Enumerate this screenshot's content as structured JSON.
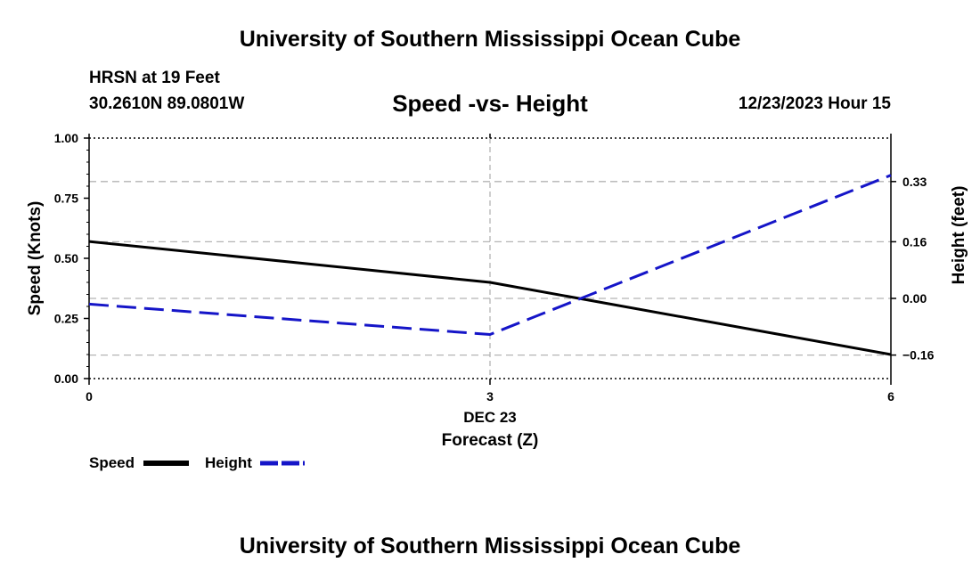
{
  "header": {
    "title": "University of Southern Mississippi Ocean Cube",
    "station": "HRSN at 19 Feet",
    "coordinates": "30.2610N  89.0801W",
    "plot_title": "Speed -vs- Height",
    "valid_time": "12/23/2023 Hour 15"
  },
  "footer": {
    "title": "University of Southern Mississippi Ocean Cube"
  },
  "legend": {
    "speed_label": "Speed",
    "height_label": "Height"
  },
  "colors": {
    "speed": "#000000",
    "height": "#1515c8",
    "grid": "#b4b4b4"
  },
  "chart_data": {
    "type": "line",
    "title": "Speed -vs- Height",
    "x": [
      0,
      3,
      6
    ],
    "x_ticks": [
      0,
      3,
      6
    ],
    "x_tick_labels": [
      "0",
      "3",
      "6"
    ],
    "x_date_label": "DEC 23",
    "xlabel": "Forecast (Z)",
    "xlim": [
      0,
      6
    ],
    "ylabel_left": "Speed (Knots)",
    "ylim_left": [
      0,
      1
    ],
    "y_ticks_left": [
      0,
      0.25,
      0.5,
      0.75,
      1
    ],
    "y_tick_labels_left": [
      "0.00",
      "0.25",
      "0.50",
      "0.75",
      "1.00"
    ],
    "ylabel_right": "Height (feet)",
    "ylim_right": [
      -0.2264,
      0.4528
    ],
    "y_ticks_right": [
      -0.16,
      0,
      0.16,
      0.33
    ],
    "y_tick_labels_right": [
      "−0.16",
      "0.00",
      "0.16",
      "0.33"
    ],
    "grid": true,
    "legend_position": "bottom-left",
    "series": [
      {
        "name": "Speed",
        "axis": "left",
        "style": "solid",
        "values": [
          0.57,
          0.4,
          0.1
        ]
      },
      {
        "name": "Height",
        "axis": "right",
        "style": "dashed",
        "values": [
          -0.016,
          -0.102,
          0.348
        ]
      }
    ]
  }
}
